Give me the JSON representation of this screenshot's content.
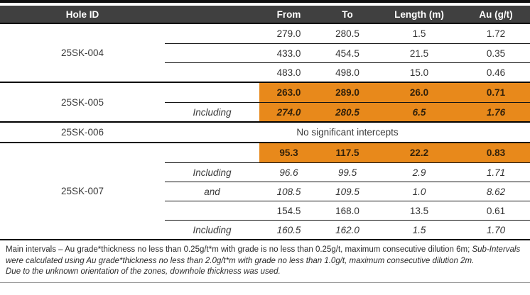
{
  "table": {
    "headers": {
      "hole_id": "Hole ID",
      "from": "From",
      "to": "To",
      "length": "Length (m)",
      "au": "Au (g/t)"
    },
    "groups": [
      {
        "hole_id": "25SK-004",
        "rows": [
          {
            "qualifier": "",
            "from": "279.0",
            "to": "280.5",
            "length": "1.5",
            "au": "1.72"
          },
          {
            "qualifier": "",
            "from": "433.0",
            "to": "454.5",
            "length": "21.5",
            "au": "0.35"
          },
          {
            "qualifier": "",
            "from": "483.0",
            "to": "498.0",
            "length": "15.0",
            "au": "0.46"
          }
        ]
      },
      {
        "hole_id": "25SK-005",
        "rows": [
          {
            "qualifier": "",
            "from": "263.0",
            "to": "289.0",
            "length": "26.0",
            "au": "0.71",
            "highlight": true
          },
          {
            "qualifier": "Including",
            "from": "274.0",
            "to": "280.5",
            "length": "6.5",
            "au": "1.76",
            "highlight": true,
            "italic": true
          }
        ]
      },
      {
        "hole_id": "25SK-006",
        "message": "No significant intercepts"
      },
      {
        "hole_id": "25SK-007",
        "rows": [
          {
            "qualifier": "",
            "from": "95.3",
            "to": "117.5",
            "length": "22.2",
            "au": "0.83",
            "highlight": true
          },
          {
            "qualifier": "Including",
            "from": "96.6",
            "to": "99.5",
            "length": "2.9",
            "au": "1.71",
            "italic": true
          },
          {
            "qualifier": "and",
            "from": "108.5",
            "to": "109.5",
            "length": "1.0",
            "au": "8.62",
            "italic": true
          },
          {
            "qualifier": "",
            "from": "154.5",
            "to": "168.0",
            "length": "13.5",
            "au": "0.61"
          },
          {
            "qualifier": "Including",
            "from": "160.5",
            "to": "162.0",
            "length": "1.5",
            "au": "1.70",
            "italic": true
          }
        ]
      }
    ],
    "colors": {
      "header_bg": "#404040",
      "highlight_orange": "#E8891B",
      "rule_black": "#000000"
    }
  },
  "footnotes": {
    "main_regular": "Main intervals – Au grade*thickness no less than 0.25g/t*m with grade is no less than 0.25g/t, maximum consecutive dilution 6m; ",
    "main_italic": "Sub-Intervals were calculated using Au grade*thickness no less than 2.0g/t*m with grade no less than 1.0g/t, maximum consecutive dilution 2m.",
    "orientation_note": "Due to the unknown orientation of the zones, downhole thickness was used."
  }
}
